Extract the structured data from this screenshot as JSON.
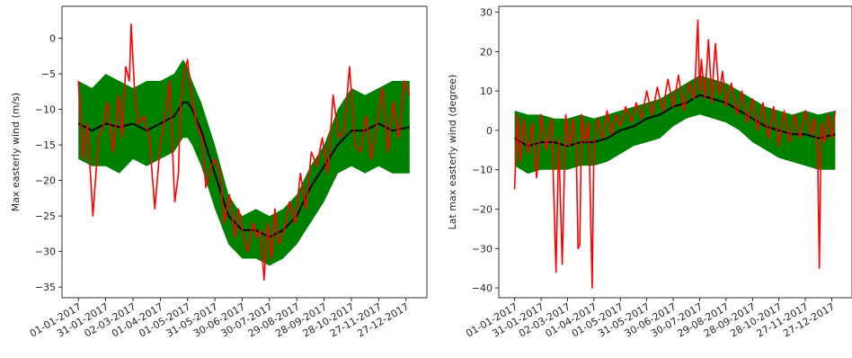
{
  "chart_data": [
    {
      "type": "line",
      "ylabel": "Max easterly wind (m/s)",
      "xlabel": "",
      "title": "",
      "x_tick_labels": [
        "01-01-2017",
        "31-01-2017",
        "02-03-2017",
        "01-04-2017",
        "01-05-2017",
        "31-05-2017",
        "30-06-2017",
        "30-07-2017",
        "29-08-2017",
        "28-09-2017",
        "28-10-2017",
        "27-11-2017",
        "27-12-2017"
      ],
      "x_tick_days": [
        0,
        30,
        60,
        90,
        120,
        150,
        180,
        210,
        240,
        270,
        300,
        330,
        360
      ],
      "y_ticks": [
        0,
        -5,
        -10,
        -15,
        -20,
        -25,
        -30,
        -35
      ],
      "ylim": [
        -36.5,
        4.5
      ],
      "xlim": [
        -18,
        383
      ],
      "grid": false,
      "series": [
        {
          "role": "band",
          "color": "#008000",
          "x": [
            0,
            15,
            30,
            45,
            60,
            75,
            90,
            105,
            115,
            120,
            125,
            135,
            150,
            165,
            180,
            195,
            210,
            225,
            240,
            255,
            270,
            285,
            300,
            315,
            330,
            345,
            364
          ],
          "upper": [
            -6,
            -7,
            -5,
            -6,
            -7,
            -6,
            -6,
            -5,
            -3,
            -4,
            -6,
            -9,
            -15,
            -22,
            -25,
            -24,
            -25,
            -24,
            -22,
            -18,
            -15,
            -10,
            -7,
            -8,
            -7,
            -6,
            -6
          ],
          "lower": [
            -17,
            -18,
            -18,
            -19,
            -17,
            -18,
            -17,
            -16,
            -14,
            -14,
            -15,
            -18,
            -24,
            -29,
            -31,
            -31,
            -32,
            -31,
            -29,
            -26,
            -23,
            -19,
            -18,
            -19,
            -18,
            -19,
            -19
          ]
        },
        {
          "role": "mean",
          "color": "#000000",
          "x": [
            0,
            15,
            30,
            45,
            60,
            75,
            90,
            105,
            115,
            120,
            125,
            135,
            150,
            165,
            180,
            195,
            210,
            225,
            240,
            255,
            270,
            285,
            300,
            315,
            330,
            345,
            364
          ],
          "y": [
            -12,
            -13,
            -12,
            -12.5,
            -12,
            -13,
            -12,
            -11,
            -9,
            -9,
            -10,
            -13,
            -19,
            -25,
            -27,
            -27,
            -28,
            -27,
            -25,
            -21,
            -18,
            -15,
            -13,
            -13,
            -12,
            -13,
            -12.5
          ]
        },
        {
          "role": "observed",
          "color": "#ff0000",
          "x": [
            0,
            5,
            10,
            16,
            22,
            28,
            32,
            38,
            44,
            48,
            52,
            56,
            58,
            62,
            66,
            72,
            78,
            84,
            90,
            94,
            100,
            106,
            110,
            112,
            116,
            120,
            124,
            130,
            136,
            140,
            146,
            150,
            156,
            160,
            166,
            172,
            176,
            180,
            186,
            192,
            196,
            200,
            204,
            208,
            212,
            216,
            220,
            226,
            232,
            238,
            244,
            250,
            256,
            262,
            268,
            274,
            280,
            286,
            292,
            298,
            304,
            310,
            316,
            322,
            328,
            334,
            340,
            346,
            352,
            358,
            364
          ],
          "y": [
            -6,
            -17,
            -12,
            -25,
            -14,
            -12,
            -9,
            -16,
            -8,
            -14,
            -4,
            -6,
            2,
            -8,
            -12,
            -11,
            -14,
            -24,
            -15,
            -12,
            -6,
            -23,
            -19,
            -10,
            -5,
            -3,
            -8,
            -12,
            -14,
            -21,
            -18,
            -17,
            -19,
            -26,
            -22,
            -28,
            -24,
            -27,
            -30,
            -26,
            -28,
            -27,
            -34,
            -26,
            -31,
            -24,
            -29,
            -27,
            -23,
            -26,
            -19,
            -24,
            -16,
            -18,
            -14,
            -19,
            -8,
            -14,
            -13,
            -4,
            -15,
            -16,
            -11,
            -17,
            -12,
            -7,
            -16,
            -9,
            -14,
            -6,
            -8
          ]
        }
      ]
    },
    {
      "type": "line",
      "ylabel": "Lat max easterly wind (degree)",
      "xlabel": "",
      "title": "",
      "x_tick_labels": [
        "01-01-2017",
        "31-01-2017",
        "02-03-2017",
        "01-04-2017",
        "01-05-2017",
        "31-05-2017",
        "30-06-2017",
        "30-07-2017",
        "29-08-2017",
        "28-09-2017",
        "28-10-2017",
        "27-11-2017",
        "27-12-2017"
      ],
      "x_tick_days": [
        0,
        30,
        60,
        90,
        120,
        150,
        180,
        210,
        240,
        270,
        300,
        330,
        360
      ],
      "y_ticks": [
        30,
        20,
        10,
        0,
        -10,
        -20,
        -30,
        -40
      ],
      "ylim": [
        -42.5,
        31.5
      ],
      "xlim": [
        -18,
        383
      ],
      "grid": false,
      "series": [
        {
          "role": "band",
          "color": "#008000",
          "x": [
            0,
            15,
            30,
            45,
            60,
            75,
            90,
            105,
            120,
            135,
            150,
            165,
            180,
            195,
            210,
            225,
            240,
            255,
            270,
            285,
            300,
            315,
            330,
            345,
            364
          ],
          "upper": [
            5,
            4,
            4,
            3,
            3,
            4,
            3,
            4,
            5,
            6,
            7,
            8,
            10,
            12,
            14,
            13,
            12,
            10,
            8,
            6,
            5,
            4,
            5,
            4,
            5
          ],
          "lower": [
            -9,
            -11,
            -10,
            -10,
            -10,
            -9,
            -9,
            -8,
            -6,
            -4,
            -3,
            -2,
            1,
            3,
            4,
            3,
            2,
            0,
            -3,
            -5,
            -7,
            -8,
            -9,
            -10,
            -10
          ]
        },
        {
          "role": "mean",
          "color": "#000000",
          "x": [
            0,
            15,
            30,
            45,
            60,
            75,
            90,
            105,
            120,
            135,
            150,
            165,
            180,
            195,
            210,
            225,
            240,
            255,
            270,
            285,
            300,
            315,
            330,
            345,
            364
          ],
          "y": [
            -2,
            -4,
            -3,
            -3,
            -4,
            -3,
            -3,
            -2,
            0,
            1,
            3,
            4,
            6,
            7,
            9,
            8,
            7,
            5,
            3,
            1,
            0,
            -1,
            -1,
            -2,
            -1
          ]
        },
        {
          "role": "observed",
          "color": "#ff0000",
          "x": [
            0,
            3,
            6,
            10,
            15,
            20,
            25,
            30,
            36,
            42,
            47,
            50,
            54,
            58,
            62,
            66,
            70,
            72,
            74,
            76,
            80,
            84,
            88,
            90,
            94,
            100,
            105,
            110,
            115,
            120,
            126,
            132,
            138,
            144,
            150,
            156,
            162,
            168,
            174,
            180,
            186,
            192,
            198,
            204,
            208,
            210,
            212,
            216,
            220,
            224,
            226,
            228,
            232,
            236,
            240,
            246,
            252,
            258,
            264,
            270,
            276,
            282,
            288,
            294,
            300,
            306,
            312,
            318,
            324,
            330,
            336,
            340,
            344,
            346,
            348,
            352,
            356,
            360,
            364
          ],
          "y": [
            -15,
            4,
            -8,
            3,
            -6,
            2,
            -12,
            4,
            -5,
            3,
            -36,
            -2,
            -34,
            4,
            -4,
            3,
            -5,
            -30,
            -29,
            4,
            -3,
            2,
            -40,
            -4,
            3,
            -2,
            5,
            -1,
            4,
            1,
            6,
            2,
            7,
            3,
            10,
            4,
            11,
            5,
            13,
            6,
            14,
            5,
            12,
            8,
            28,
            10,
            18,
            8,
            23,
            7,
            16,
            22,
            9,
            15,
            6,
            12,
            4,
            10,
            2,
            8,
            0,
            7,
            -2,
            6,
            -4,
            5,
            -3,
            4,
            -2,
            5,
            -1,
            3,
            -6,
            -35,
            2,
            -3,
            4,
            -2,
            5
          ]
        }
      ]
    }
  ]
}
